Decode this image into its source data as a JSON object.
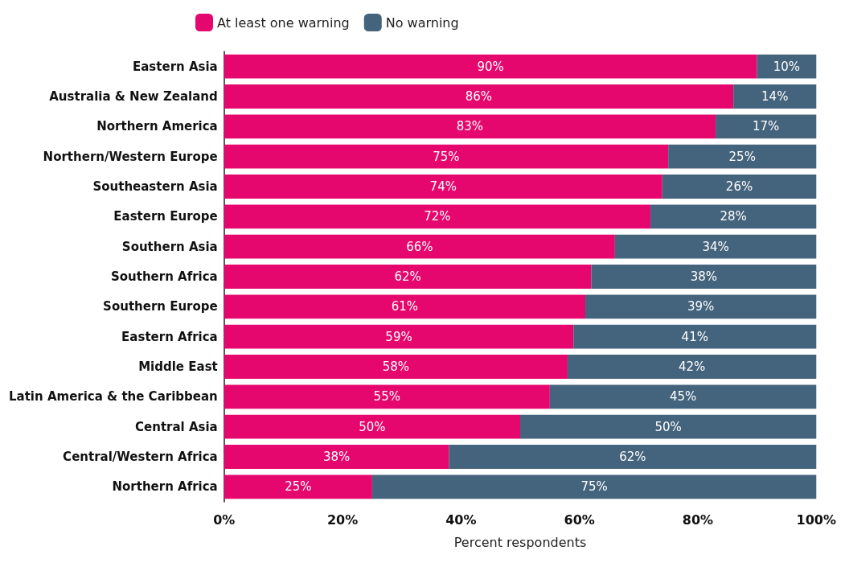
{
  "chart_data": {
    "type": "bar",
    "orientation": "horizontal",
    "stacked": true,
    "xlabel": "Percent respondents",
    "legend": "top",
    "grid": false,
    "categories": [
      "Eastern Asia",
      "Australia & New Zealand",
      "Northern America",
      "Northern/Western Europe",
      "Southeastern Asia",
      "Eastern Europe",
      "Southern Asia",
      "Southern Africa",
      "Southern Europe",
      "Eastern Africa",
      "Middle East",
      "Latin America & the Caribbean",
      "Central Asia",
      "Central/Western Africa",
      "Northern Africa"
    ],
    "xlim": [
      0,
      100
    ],
    "xticks": [
      {
        "value": 0,
        "label": "0%"
      },
      {
        "value": 20,
        "label": "20%"
      },
      {
        "value": 40,
        "label": "40%"
      },
      {
        "value": 60,
        "label": "60%"
      },
      {
        "value": 80,
        "label": "80%"
      },
      {
        "value": 100,
        "label": "100%"
      }
    ],
    "series": [
      {
        "name": "At least one warning",
        "color": "#e5076d",
        "values": [
          90,
          86,
          83,
          75,
          74,
          72,
          66,
          62,
          61,
          59,
          58,
          55,
          50,
          38,
          25
        ],
        "value_labels": [
          "90%",
          "86%",
          "83%",
          "75%",
          "74%",
          "72%",
          "66%",
          "62%",
          "61%",
          "59%",
          "58%",
          "55%",
          "50%",
          "38%",
          "25%"
        ]
      },
      {
        "name": "No warning",
        "color": "#44637d",
        "values": [
          10,
          14,
          17,
          25,
          26,
          28,
          34,
          38,
          39,
          41,
          42,
          45,
          50,
          62,
          75
        ],
        "value_labels": [
          "10%",
          "14%",
          "17%",
          "25%",
          "26%",
          "28%",
          "34%",
          "38%",
          "39%",
          "41%",
          "42%",
          "45%",
          "50%",
          "62%",
          "75%"
        ]
      }
    ]
  }
}
